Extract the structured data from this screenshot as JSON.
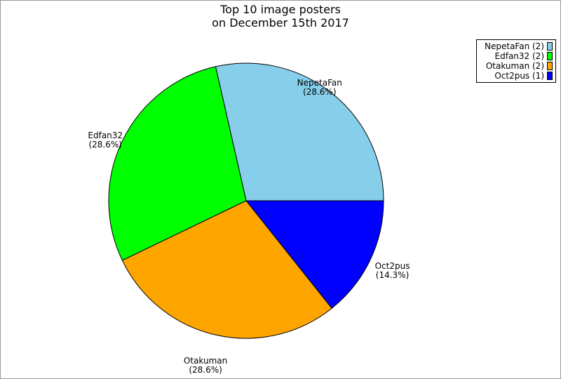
{
  "chart_data": {
    "type": "pie",
    "title": [
      "Top 10 image posters",
      "on December 15th 2017"
    ],
    "slices": [
      {
        "name": "NepetaFan",
        "value": 2,
        "percent": "(28.6%)",
        "legend": "NepetaFan (2)",
        "color": "#87ceeb"
      },
      {
        "name": "Edfan32",
        "value": 2,
        "percent": "(28.6%)",
        "legend": "Edfan32 (2)",
        "color": "#00ff00"
      },
      {
        "name": "Otakuman",
        "value": 2,
        "percent": "(28.6%)",
        "legend": "Otakuman (2)",
        "color": "#ffa500"
      },
      {
        "name": "Oct2pus",
        "value": 1,
        "percent": "(14.3%)",
        "legend": "Oct2pus (1)",
        "color": "#0000ff"
      }
    ],
    "legend_position": "top-right",
    "start_angle_deg": 0,
    "direction": "counterclockwise"
  }
}
